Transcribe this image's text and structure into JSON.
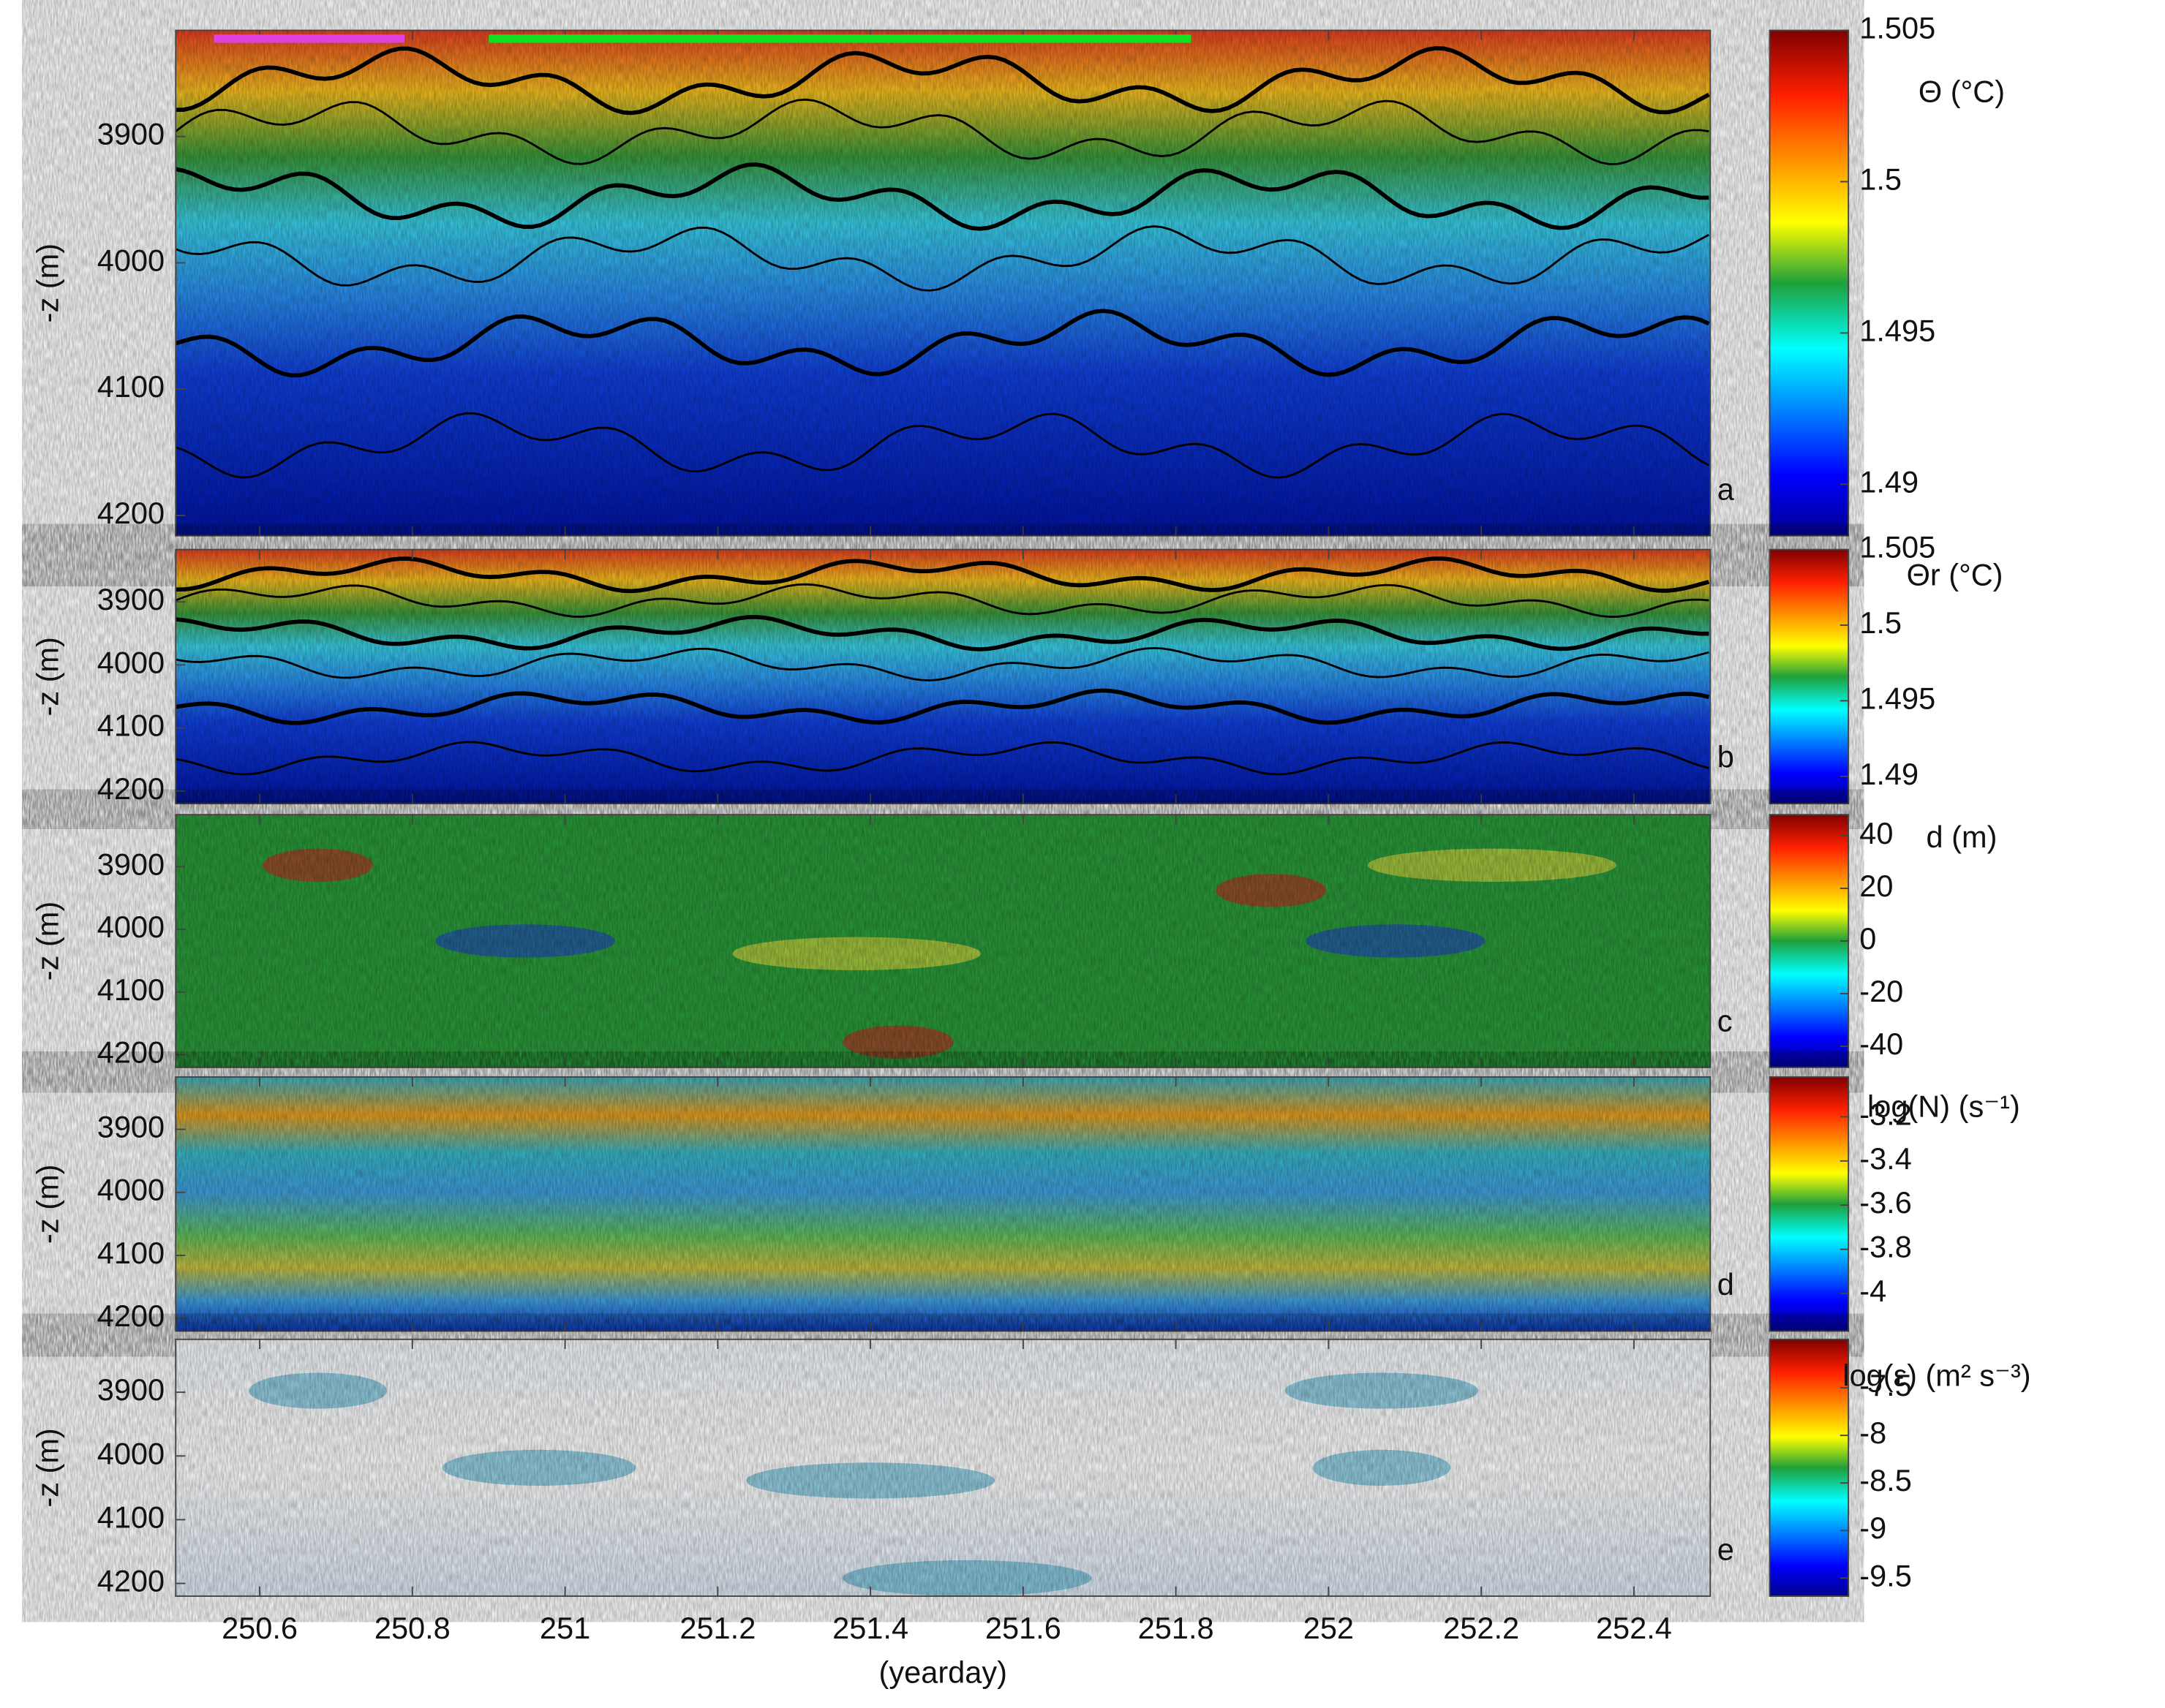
{
  "chart_data": [
    {
      "type": "heatmap",
      "panel_label": "a",
      "ylabel": "-z (m)",
      "ylim": [
        3816,
        4216
      ],
      "yticks": [
        3900,
        4000,
        4100,
        4200
      ],
      "colorbar_label": "Θ (°C)",
      "cmap": "jet",
      "clim": [
        1.4883,
        1.505
      ],
      "cticks": [
        1.505,
        1.5,
        1.495,
        1.49
      ],
      "segments": [
        {
          "start": 250.54,
          "end": 250.79,
          "color": "#e040e0"
        },
        {
          "start": 250.9,
          "end": 251.82,
          "color": "#10e020"
        }
      ]
    },
    {
      "type": "heatmap",
      "panel_label": "b",
      "ylabel": "-z (m)",
      "ylim": [
        3817,
        4220
      ],
      "yticks": [
        3900,
        4000,
        4100,
        4200
      ],
      "colorbar_label": "Θr (°C)",
      "cmap": "jet",
      "clim": [
        1.4882,
        1.505
      ],
      "cticks": [
        1.505,
        1.5,
        1.495,
        1.49
      ]
    },
    {
      "type": "heatmap",
      "panel_label": "c",
      "ylabel": "-z (m)",
      "ylim": [
        3817,
        4220
      ],
      "yticks": [
        3900,
        4000,
        4100,
        4200
      ],
      "colorbar_label": "d (m)",
      "cmap": "jet",
      "clim": [
        -48,
        48
      ],
      "cticks": [
        40,
        20,
        0,
        -20,
        -40
      ]
    },
    {
      "type": "heatmap",
      "panel_label": "d",
      "ylabel": "-z (m)",
      "ylim": [
        3817,
        4220
      ],
      "yticks": [
        3900,
        4000,
        4100,
        4200
      ],
      "colorbar_label": "log(N) (s⁻¹)",
      "cmap": "jet",
      "clim": [
        -4.17,
        -3.02
      ],
      "cticks": [
        -3.2,
        -3.4,
        -3.6,
        -3.8,
        -4
      ]
    },
    {
      "type": "heatmap",
      "panel_label": "e",
      "ylabel": "-z (m)",
      "ylim": [
        3817,
        4220
      ],
      "yticks": [
        3900,
        4000,
        4100,
        4200
      ],
      "colorbar_label": "log(ε) (m² s⁻³)",
      "cmap": "jet",
      "clim": [
        -9.69,
        -6.99
      ],
      "cticks": [
        -7.5,
        -8,
        -8.5,
        -9,
        -9.5
      ],
      "xlabel": "(yearday)",
      "xlim": [
        250.49,
        252.5
      ],
      "xticks": [
        250.6,
        250.8,
        251,
        251.2,
        251.4,
        251.6,
        251.8,
        252,
        252.2,
        252.4
      ]
    }
  ]
}
